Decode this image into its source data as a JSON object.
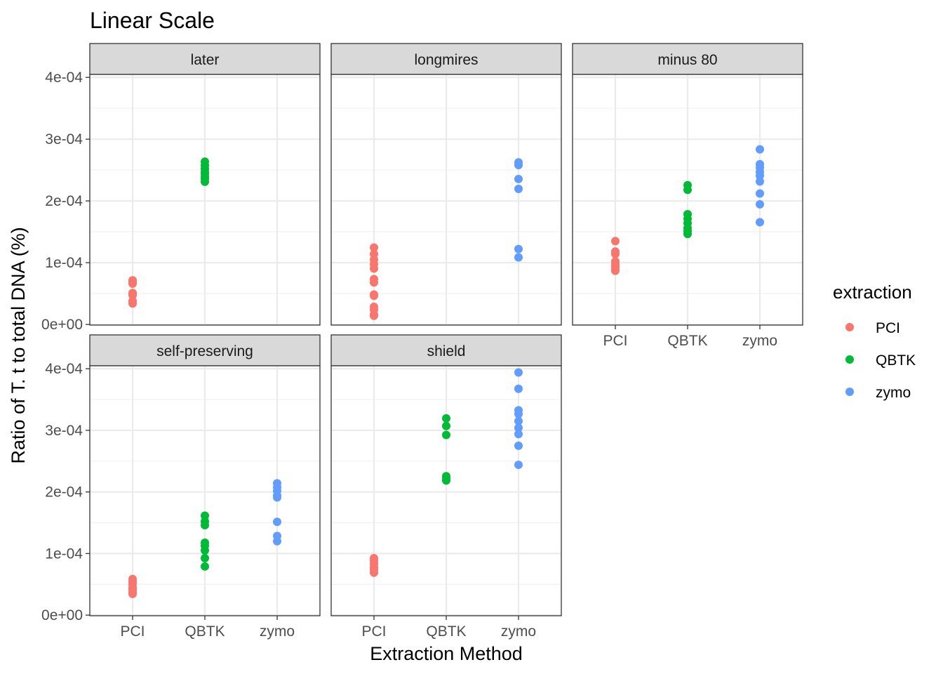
{
  "chart_data": {
    "type": "scatter",
    "title": "Linear Scale",
    "xlabel": "Extraction Method",
    "ylabel": "Ratio of T. t to total DNA (%)",
    "categories": [
      "PCI",
      "QBTK",
      "zymo"
    ],
    "ylim": [
      0,
      0.0004
    ],
    "yticks": [
      0,
      0.0001,
      0.0002,
      0.0003,
      0.0004
    ],
    "ytick_labels": [
      "0e+00",
      "1e-04",
      "2e-04",
      "3e-04",
      "4e-04"
    ],
    "grid": true,
    "facet_layout": "3 columns, 2 rows",
    "legend": {
      "title": "extraction",
      "placement": "right",
      "entries": [
        {
          "name": "PCI",
          "color": "#F8766D"
        },
        {
          "name": "QBTK",
          "color": "#00BA38"
        },
        {
          "name": "zymo",
          "color": "#619CFF"
        }
      ]
    },
    "panels": [
      {
        "label": "later",
        "series": [
          {
            "name": "PCI",
            "x": "PCI",
            "values": [
              7.15e-05,
              6.9e-05,
              6.6e-05,
              5.1e-05,
              4.9e-05,
              4.75e-05,
              3.8e-05,
              3.4e-05
            ]
          },
          {
            "name": "QBTK",
            "x": "QBTK",
            "values": [
              0.0002635,
              0.0002575,
              0.000252,
              0.000247,
              0.0002435,
              0.000239,
              0.0002355,
              0.000231
            ]
          },
          {
            "name": "zymo",
            "x": "zymo",
            "values": []
          }
        ]
      },
      {
        "label": "longmires",
        "series": [
          {
            "name": "PCI",
            "x": "PCI",
            "values": [
              0.0001245,
              0.000114,
              0.000105,
              9.75e-05,
              9.05e-05,
              7.35e-05,
              6.8e-05,
              4.85e-05,
              4.65e-05,
              2.85e-05,
              2.4e-05,
              1.6e-05,
              1.4e-05
            ]
          },
          {
            "name": "QBTK",
            "x": "QBTK",
            "values": []
          },
          {
            "name": "zymo",
            "x": "zymo",
            "values": [
              0.0002625,
              0.000258,
              0.0002355,
              0.0002195,
              0.000122,
              0.0001085
            ]
          }
        ]
      },
      {
        "label": "minus 80",
        "series": [
          {
            "name": "PCI",
            "x": "PCI",
            "values": [
              0.000135,
              0.000118,
              0.000114,
              0.000102,
              9.75e-05,
              9.35e-05,
              8.95e-05,
              8.7e-05
            ]
          },
          {
            "name": "QBTK",
            "x": "QBTK",
            "values": [
              0.0002255,
              0.000218,
              0.0001785,
              0.000171,
              0.000164,
              0.000156,
              0.000151,
              0.0001465
            ]
          },
          {
            "name": "zymo",
            "x": "zymo",
            "values": [
              0.0002835,
              0.0002595,
              0.000254,
              0.000247,
              0.000241,
              0.0002315,
              0.000212,
              0.0001945,
              0.0001655
            ]
          }
        ]
      },
      {
        "label": "self-preserving",
        "series": [
          {
            "name": "PCI",
            "x": "PCI",
            "values": [
              5.85e-05,
              5.45e-05,
              5.05e-05,
              4.5e-05,
              4.15e-05,
              3.75e-05,
              3.45e-05
            ]
          },
          {
            "name": "QBTK",
            "x": "QBTK",
            "values": [
              0.0001615,
              0.000152,
              0.000146,
              0.0001175,
              0.0001125,
              0.000105,
              9.25e-05,
              7.9e-05
            ]
          },
          {
            "name": "zymo",
            "x": "zymo",
            "values": [
              0.000214,
              0.0002075,
              0.0002015,
              0.000194,
              0.000191,
              0.0001515,
              0.0001285,
              0.00012
            ]
          }
        ]
      },
      {
        "label": "shield",
        "series": [
          {
            "name": "PCI",
            "x": "PCI",
            "values": [
              9.25e-05,
              8.85e-05,
              8.35e-05,
              7.8e-05,
              7.4e-05,
              6.9e-05
            ]
          },
          {
            "name": "QBTK",
            "x": "QBTK",
            "values": [
              0.0003195,
              0.000307,
              0.0002925,
              0.0002255,
              0.000222,
              0.0002185
            ]
          },
          {
            "name": "zymo",
            "x": "zymo",
            "values": [
              0.000394,
              0.0003675,
              0.0003325,
              0.0003265,
              0.000315,
              0.000304,
              0.000294,
              0.000275,
              0.000244
            ]
          }
        ]
      }
    ]
  }
}
